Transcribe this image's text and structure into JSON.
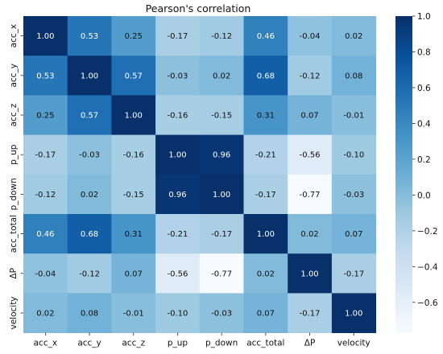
{
  "chart_data": {
    "type": "heatmap",
    "title": "Pearson's correlation",
    "x_labels": [
      "acc_x",
      "acc_y",
      "acc_z",
      "p_up",
      "p_down",
      "acc_total",
      "ΔP",
      "velocity"
    ],
    "y_labels": [
      "acc_x",
      "acc_y",
      "acc_z",
      "p_up",
      "p_down",
      "acc_total",
      "ΔP",
      "velocity"
    ],
    "values": [
      [
        1.0,
        0.53,
        0.25,
        -0.17,
        -0.12,
        0.46,
        -0.04,
        0.02
      ],
      [
        0.53,
        1.0,
        0.57,
        -0.03,
        0.02,
        0.68,
        -0.12,
        0.08
      ],
      [
        0.25,
        0.57,
        1.0,
        -0.16,
        -0.15,
        0.31,
        0.07,
        -0.01
      ],
      [
        -0.17,
        -0.03,
        -0.16,
        1.0,
        0.96,
        -0.21,
        -0.56,
        -0.1
      ],
      [
        -0.12,
        0.02,
        -0.15,
        0.96,
        1.0,
        -0.17,
        -0.77,
        -0.03
      ],
      [
        0.46,
        0.68,
        0.31,
        -0.21,
        -0.17,
        1.0,
        0.02,
        0.07
      ],
      [
        -0.04,
        -0.12,
        0.07,
        -0.56,
        -0.77,
        0.02,
        1.0,
        -0.17
      ],
      [
        0.02,
        0.08,
        -0.01,
        -0.1,
        -0.03,
        0.07,
        -0.17,
        1.0
      ]
    ],
    "colormap": "Blues",
    "vmin": -0.77,
    "vmax": 1.0,
    "colorbar_ticks": [
      "1.0",
      "0.8",
      "0.6",
      "0.4",
      "0.2",
      "0.0",
      "−0.2",
      "−0.4",
      "−0.6"
    ],
    "colorbar_tick_values": [
      1.0,
      0.8,
      0.6,
      0.4,
      0.2,
      0.0,
      -0.2,
      -0.4,
      -0.6
    ],
    "annotated": true,
    "colorbar_position": "right"
  }
}
